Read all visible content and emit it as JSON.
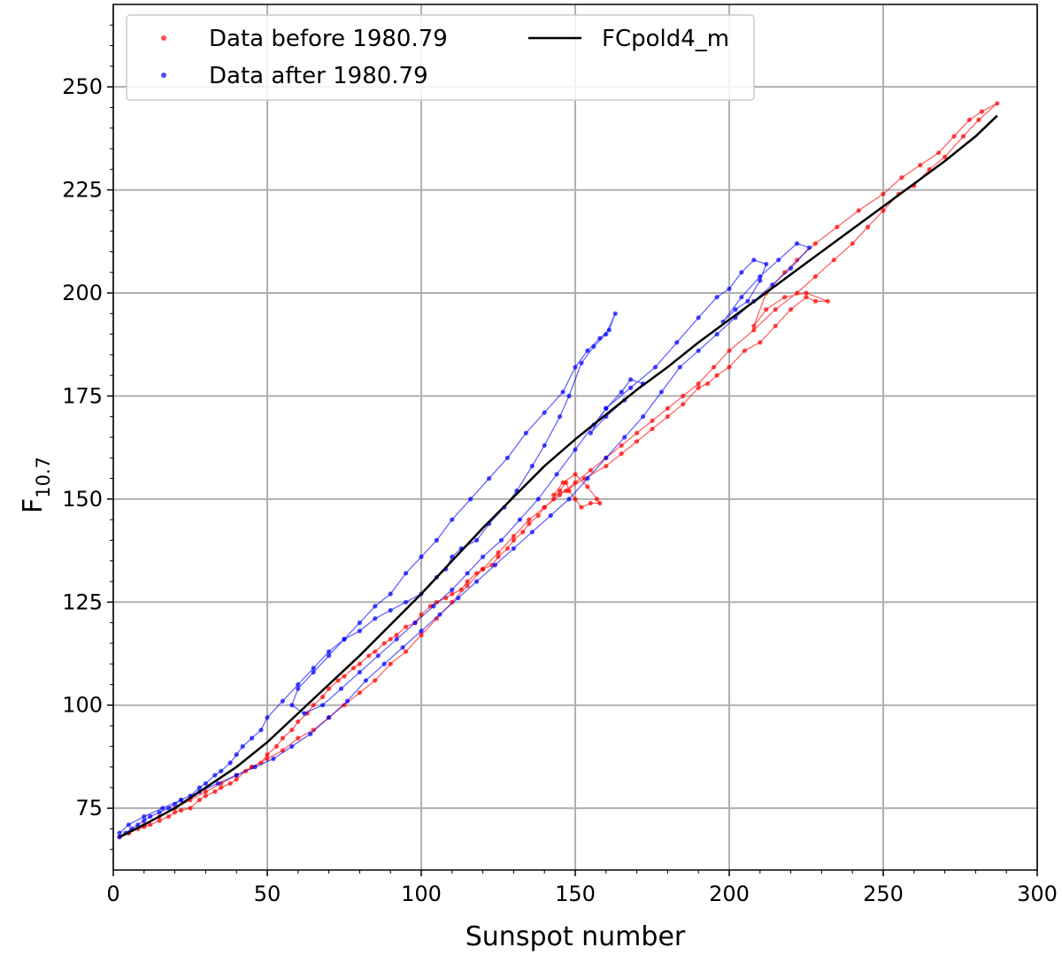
{
  "chart_data": {
    "type": "scatter",
    "xlabel": "Sunspot number",
    "ylabel": "F",
    "ylabel_sub": "10.7",
    "xlim": [
      0,
      300
    ],
    "ylim": [
      60,
      270
    ],
    "xticks": [
      "0",
      "50",
      "100",
      "150",
      "200",
      "250",
      "300"
    ],
    "yticks": [
      "75",
      "100",
      "125",
      "150",
      "175",
      "200",
      "225",
      "250"
    ],
    "xtick_values": [
      0,
      50,
      100,
      150,
      200,
      250,
      300
    ],
    "ytick_values": [
      75,
      100,
      125,
      150,
      175,
      200,
      225,
      250
    ],
    "grid": true,
    "legend_position": "top-left",
    "series": [
      {
        "name": "Data before 1980.79",
        "color": "#ff0000",
        "style": "markers+line",
        "x": [
          2,
          5,
          8,
          10,
          12,
          15,
          18,
          20,
          22,
          25,
          28,
          30,
          33,
          35,
          38,
          40,
          43,
          45,
          48,
          50,
          53,
          55,
          58,
          60,
          63,
          65,
          68,
          70,
          73,
          75,
          78,
          80,
          83,
          85,
          88,
          90,
          92,
          95,
          98,
          100,
          103,
          105,
          108,
          110,
          113,
          115,
          118,
          120,
          123,
          125,
          128,
          130,
          133,
          135,
          138,
          140,
          143,
          145,
          147,
          148,
          150,
          152,
          155,
          158,
          157,
          154,
          150,
          146,
          143,
          147,
          153,
          160,
          165,
          170,
          175,
          180,
          185,
          190,
          193,
          196,
          200,
          205,
          210,
          215,
          220,
          225,
          228,
          232,
          225,
          218,
          212,
          208,
          212,
          218,
          222,
          228,
          235,
          242,
          250,
          256,
          262,
          268,
          273,
          278,
          282,
          287,
          281,
          276,
          270,
          265,
          260,
          255,
          250,
          245,
          240,
          234,
          228,
          222,
          215,
          208,
          200,
          195,
          190,
          185,
          180,
          175,
          170,
          165,
          160,
          155,
          150,
          145,
          140,
          135,
          130,
          125,
          120,
          115,
          110,
          105,
          100,
          95,
          90,
          85,
          80,
          75,
          70,
          65,
          60,
          55,
          50,
          45,
          40,
          35,
          30,
          25,
          20,
          15,
          10,
          5
        ],
        "y": [
          68,
          69,
          70,
          70.5,
          71,
          72,
          73,
          74,
          74.5,
          75,
          77,
          78,
          79,
          80,
          81,
          82,
          84,
          85,
          86,
          88,
          90,
          92,
          94,
          96,
          98,
          100,
          102,
          104,
          106,
          107,
          109,
          110,
          112,
          113,
          115,
          116,
          117,
          119,
          120,
          122,
          124,
          125,
          126,
          127,
          128,
          130,
          132,
          133,
          134,
          136,
          138,
          140,
          142,
          144,
          146,
          148,
          150,
          152,
          154,
          152,
          150,
          148,
          149,
          149,
          150,
          153,
          156,
          154,
          151,
          152,
          155,
          158,
          161,
          164,
          167,
          170,
          173,
          177,
          178,
          180,
          182,
          186,
          188,
          192,
          196,
          199,
          198,
          198,
          200,
          199,
          196,
          192,
          200,
          205,
          208,
          212,
          216,
          220,
          224,
          228,
          231,
          234,
          238,
          242,
          244,
          246,
          242,
          238,
          233,
          230,
          226,
          224,
          220,
          216,
          212,
          208,
          204,
          200,
          196,
          191,
          186,
          182,
          178,
          175,
          172,
          169,
          166,
          163,
          160,
          157,
          154,
          151,
          148,
          145,
          141,
          137,
          133,
          129,
          125,
          121,
          117,
          113,
          110,
          106,
          103,
          100,
          97,
          94,
          92,
          89,
          87,
          85,
          83,
          81,
          79,
          77,
          75,
          73,
          71,
          69
        ]
      },
      {
        "name": "Data after 1980.79",
        "color": "#0000ff",
        "style": "markers+line",
        "x": [
          2,
          4,
          6,
          8,
          10,
          12,
          15,
          18,
          20,
          22,
          25,
          28,
          30,
          33,
          35,
          38,
          40,
          42,
          45,
          48,
          50,
          55,
          60,
          65,
          70,
          75,
          80,
          85,
          90,
          95,
          100,
          105,
          108,
          110,
          113,
          118,
          122,
          127,
          131,
          136,
          140,
          145,
          148,
          152,
          156,
          160,
          163,
          161,
          158,
          154,
          150,
          146,
          140,
          134,
          128,
          122,
          116,
          110,
          105,
          100,
          95,
          90,
          85,
          80,
          75,
          70,
          65,
          60,
          58,
          62,
          68,
          74,
          80,
          86,
          92,
          98,
          104,
          110,
          115,
          120,
          126,
          132,
          138,
          144,
          150,
          156,
          160,
          165,
          168,
          172,
          166,
          160,
          155,
          160,
          168,
          176,
          183,
          190,
          196,
          200,
          204,
          208,
          212,
          210,
          206,
          202,
          198,
          204,
          210,
          216,
          222,
          226,
          220,
          214,
          208,
          202,
          196,
          190,
          184,
          178,
          172,
          166,
          160,
          154,
          148,
          142,
          136,
          130,
          124,
          118,
          112,
          106,
          100,
          94,
          88,
          82,
          76,
          70,
          64,
          58,
          52,
          46,
          40,
          34,
          28,
          22,
          16,
          10,
          5,
          2
        ],
        "y": [
          68,
          69,
          70,
          71,
          72,
          73,
          74,
          75,
          76,
          77,
          78,
          80,
          81,
          83,
          84,
          86,
          88,
          90,
          92,
          94,
          97,
          101,
          105,
          109,
          113,
          116,
          118,
          121,
          123,
          125,
          127,
          131,
          133,
          136,
          138,
          140,
          144,
          148,
          152,
          158,
          163,
          170,
          175,
          183,
          187,
          190,
          195,
          191,
          189,
          186,
          182,
          176,
          171,
          166,
          160,
          155,
          150,
          145,
          140,
          136,
          132,
          127,
          124,
          120,
          116,
          112,
          108,
          104,
          100,
          98,
          100,
          104,
          108,
          112,
          116,
          120,
          124,
          128,
          132,
          136,
          140,
          145,
          150,
          156,
          162,
          168,
          172,
          176,
          179,
          178,
          174,
          170,
          166,
          172,
          177,
          182,
          188,
          194,
          199,
          201,
          205,
          208,
          207,
          203,
          198,
          196,
          193,
          199,
          204,
          208,
          212,
          211,
          206,
          202,
          198,
          194,
          190,
          186,
          182,
          176,
          170,
          165,
          160,
          155,
          150,
          146,
          142,
          138,
          134,
          130,
          126,
          122,
          118,
          114,
          110,
          106,
          101,
          97,
          93,
          90,
          87,
          85,
          83,
          81,
          79,
          77,
          75,
          73,
          71,
          69
        ]
      },
      {
        "name": "FCpold4_m",
        "color": "#000000",
        "style": "line",
        "x": [
          2,
          10,
          20,
          30,
          40,
          50,
          60,
          70,
          80,
          90,
          100,
          110,
          120,
          130,
          140,
          150,
          160,
          170,
          180,
          190,
          200,
          210,
          220,
          230,
          240,
          250,
          260,
          270,
          280,
          287
        ],
        "y": [
          68,
          71,
          75,
          80,
          85,
          91,
          98,
          105,
          112,
          119.5,
          127,
          135,
          143,
          150.5,
          158,
          164.5,
          170.5,
          176.5,
          182,
          188,
          193.5,
          199,
          204.5,
          210,
          215.5,
          221,
          226.5,
          232,
          238,
          243
        ]
      }
    ]
  }
}
